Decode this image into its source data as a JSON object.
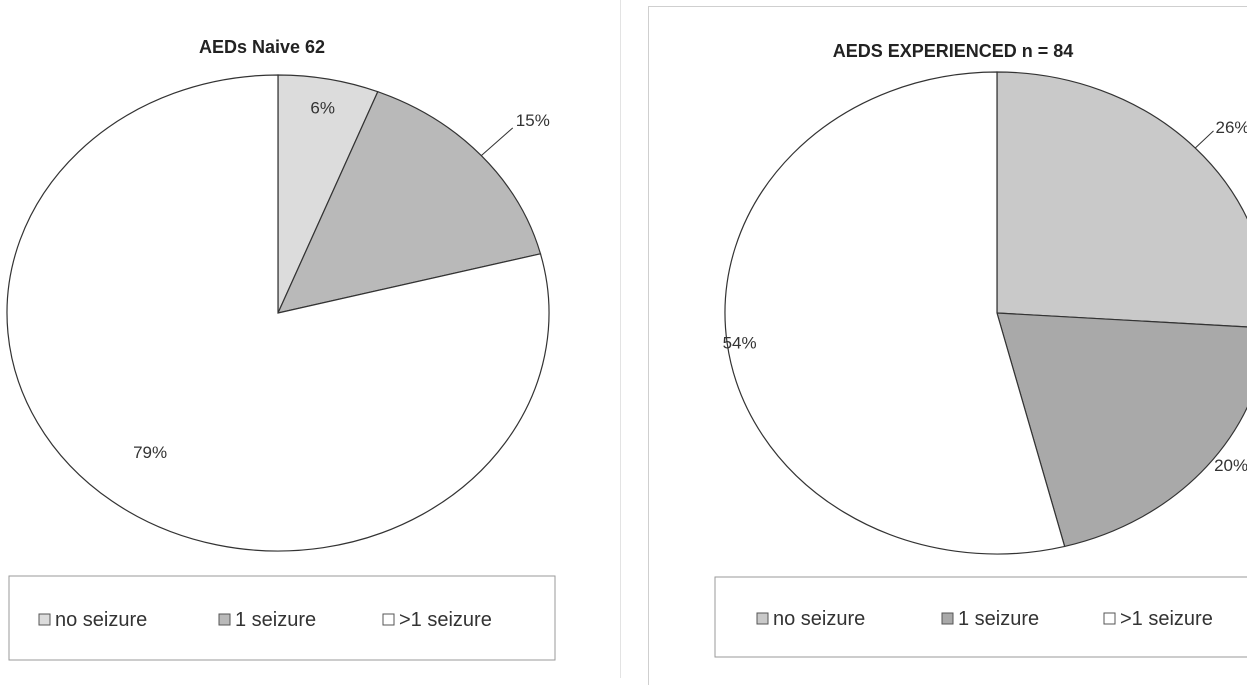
{
  "chart_data": [
    {
      "type": "pie",
      "title": "AEDs Naive 62",
      "categories": [
        "no seizure",
        "1 seizure",
        ">1 seizure"
      ],
      "values": [
        6,
        15,
        79
      ],
      "data_labels": [
        "6%",
        "15%",
        "79%"
      ],
      "colors": [
        "#dcdcdc",
        "#b9b9b9",
        "#ffffff"
      ],
      "legend": {
        "placement": "bottom",
        "entries": [
          "no seizure",
          "1 seizure",
          ">1 seizure"
        ]
      }
    },
    {
      "type": "pie",
      "title": "AEDS EXPERIENCED n = 84",
      "categories": [
        "no seizure",
        "1 seizure",
        ">1 seizure"
      ],
      "values": [
        26,
        20,
        54
      ],
      "data_labels": [
        "26%",
        "20%",
        "54%"
      ],
      "colors": [
        "#c9c9c9",
        "#a9a9a9",
        "#ffffff"
      ],
      "legend": {
        "placement": "bottom",
        "entries": [
          "no seizure",
          "1 seizure",
          ">1 seizure"
        ]
      }
    }
  ]
}
